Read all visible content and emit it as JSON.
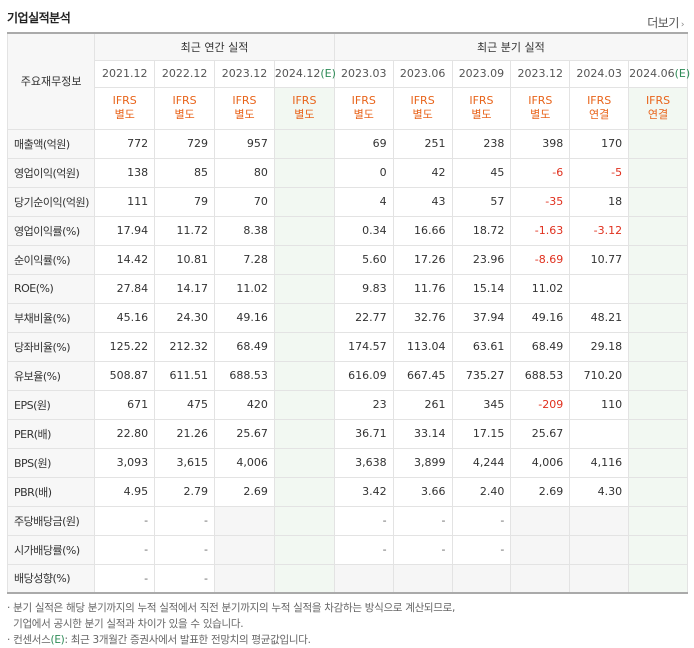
{
  "title": "기업실적분석",
  "more": {
    "label": "더보기"
  },
  "header": {
    "row_label": "주요재무정보",
    "annual_group": "최근 연간 실적",
    "quarter_group": "최근 분기 실적",
    "annual_periods": [
      {
        "date": "2021.12",
        "estimate": false
      },
      {
        "date": "2022.12",
        "estimate": false
      },
      {
        "date": "2023.12",
        "estimate": false
      },
      {
        "date": "2024.12",
        "estimate": true
      }
    ],
    "quarter_periods": [
      {
        "date": "2023.03",
        "estimate": false
      },
      {
        "date": "2023.06",
        "estimate": false
      },
      {
        "date": "2023.09",
        "estimate": false
      },
      {
        "date": "2023.12",
        "estimate": false
      },
      {
        "date": "2024.03",
        "estimate": false
      },
      {
        "date": "2024.06",
        "estimate": true
      }
    ],
    "estimate_mark": "(E)",
    "annual_ifrs": [
      [
        "IFRS",
        "별도"
      ],
      [
        "IFRS",
        "별도"
      ],
      [
        "IFRS",
        "별도"
      ],
      [
        "IFRS",
        "별도"
      ]
    ],
    "quarter_ifrs": [
      [
        "IFRS",
        "별도"
      ],
      [
        "IFRS",
        "별도"
      ],
      [
        "IFRS",
        "별도"
      ],
      [
        "IFRS",
        "별도"
      ],
      [
        "IFRS",
        "연결"
      ],
      [
        "IFRS",
        "연결"
      ]
    ]
  },
  "rows": [
    {
      "label": "매출액(억원)",
      "annual": [
        "772",
        "729",
        "957",
        ""
      ],
      "quarter": [
        "69",
        "251",
        "238",
        "398",
        "170",
        ""
      ],
      "group_start": true
    },
    {
      "label": "영업이익(억원)",
      "annual": [
        "138",
        "85",
        "80",
        ""
      ],
      "quarter": [
        "0",
        "42",
        "45",
        "-6",
        "-5",
        ""
      ]
    },
    {
      "label": "당기순이익(억원)",
      "annual": [
        "111",
        "79",
        "70",
        ""
      ],
      "quarter": [
        "4",
        "43",
        "57",
        "-35",
        "18",
        ""
      ]
    },
    {
      "label": "영업이익률(%)",
      "annual": [
        "17.94",
        "11.72",
        "8.38",
        ""
      ],
      "quarter": [
        "0.34",
        "16.66",
        "18.72",
        "-1.63",
        "-3.12",
        ""
      ],
      "group_start": true
    },
    {
      "label": "순이익률(%)",
      "annual": [
        "14.42",
        "10.81",
        "7.28",
        ""
      ],
      "quarter": [
        "5.60",
        "17.26",
        "23.96",
        "-8.69",
        "10.77",
        ""
      ]
    },
    {
      "label": "ROE(%)",
      "annual": [
        "27.84",
        "14.17",
        "11.02",
        ""
      ],
      "quarter": [
        "9.83",
        "11.76",
        "15.14",
        "11.02",
        "",
        ""
      ]
    },
    {
      "label": "부채비율(%)",
      "annual": [
        "45.16",
        "24.30",
        "49.16",
        ""
      ],
      "quarter": [
        "22.77",
        "32.76",
        "37.94",
        "49.16",
        "48.21",
        ""
      ],
      "group_start": true
    },
    {
      "label": "당좌비율(%)",
      "annual": [
        "125.22",
        "212.32",
        "68.49",
        ""
      ],
      "quarter": [
        "174.57",
        "113.04",
        "63.61",
        "68.49",
        "29.18",
        ""
      ]
    },
    {
      "label": "유보율(%)",
      "annual": [
        "508.87",
        "611.51",
        "688.53",
        ""
      ],
      "quarter": [
        "616.09",
        "667.45",
        "735.27",
        "688.53",
        "710.20",
        ""
      ]
    },
    {
      "label": "EPS(원)",
      "annual": [
        "671",
        "475",
        "420",
        ""
      ],
      "quarter": [
        "23",
        "261",
        "345",
        "-209",
        "110",
        ""
      ],
      "group_start": true
    },
    {
      "label": "PER(배)",
      "annual": [
        "22.80",
        "21.26",
        "25.67",
        ""
      ],
      "quarter": [
        "36.71",
        "33.14",
        "17.15",
        "25.67",
        "",
        ""
      ]
    },
    {
      "label": "BPS(원)",
      "annual": [
        "3,093",
        "3,615",
        "4,006",
        ""
      ],
      "quarter": [
        "3,638",
        "3,899",
        "4,244",
        "4,006",
        "4,116",
        ""
      ]
    },
    {
      "label": "PBR(배)",
      "annual": [
        "4.95",
        "2.79",
        "2.69",
        ""
      ],
      "quarter": [
        "3.42",
        "3.66",
        "2.40",
        "2.69",
        "4.30",
        ""
      ]
    },
    {
      "label": "주당배당금(원)",
      "annual": [
        "-",
        "-",
        "",
        ""
      ],
      "quarter": [
        "-",
        "-",
        "-",
        "",
        "",
        ""
      ],
      "group_start": true,
      "shaded_blank": true
    },
    {
      "label": "시가배당률(%)",
      "annual": [
        "-",
        "-",
        "",
        ""
      ],
      "quarter": [
        "-",
        "-",
        "-",
        "",
        "",
        ""
      ],
      "shaded_blank": true
    },
    {
      "label": "배당성향(%)",
      "annual": [
        "-",
        "-",
        "",
        ""
      ],
      "quarter": [
        "",
        "",
        "",
        "",
        "",
        ""
      ],
      "shaded_blank": true
    }
  ],
  "notes": {
    "line1": "분기 실적은 해당 분기까지의 누적 실적에서 직전 분기까지의 누적 실적을 차감하는 방식으로 계산되므로,",
    "line2": "기업에서 공시한 분기 실적과 차이가 있을 수 있습니다.",
    "line3_prefix": "컨센서스",
    "line3_mark": "(E)",
    "line3_suffix": ": 최근 3개월간 증권사에서 발표한 전망치의 평균값입니다."
  },
  "colors": {
    "ifrs": "#e8641b",
    "negative": "#e0301e",
    "estimate_bg": "#f2f8f2",
    "estimate_mark": "#2e8b57"
  }
}
